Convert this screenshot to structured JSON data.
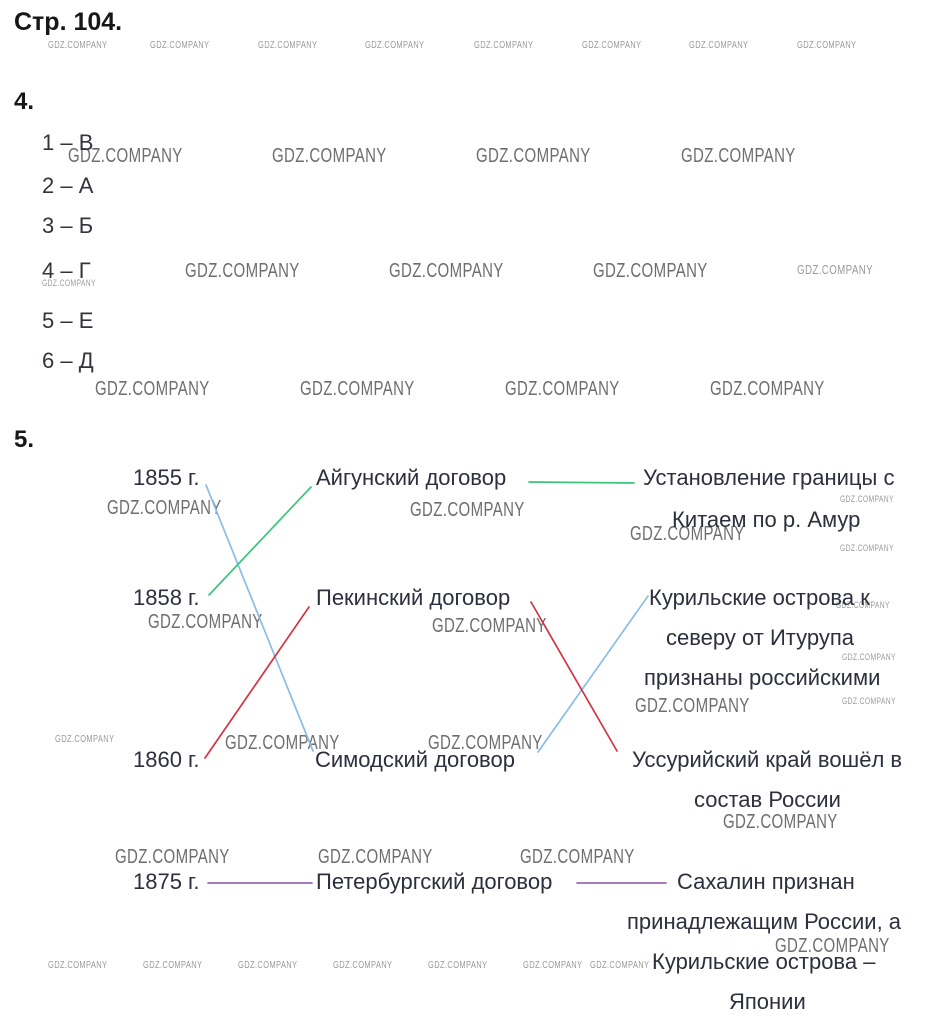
{
  "page": {
    "title": "Стр. 104."
  },
  "watermark": {
    "text": "GDZ.COMPANY"
  },
  "colors": {
    "text": "#2c2f3d",
    "line_green": "#3cc47c",
    "line_blue": "#8abde6",
    "line_red": "#d23440",
    "line_purple": "#9a6cb5"
  },
  "task4": {
    "number": "4.",
    "answers": [
      "1 – В",
      "2 – А",
      "3 – Б",
      "4 – Г",
      "5 – Е",
      "6 – Д"
    ]
  },
  "task5": {
    "number": "5.",
    "years": [
      "1855 г.",
      "1858 г.",
      "1860 г.",
      "1875 г."
    ],
    "treaties": [
      "Айгунский договор",
      "Пекинский договор",
      "Симодский договор",
      "Петербургский договор"
    ],
    "results": [
      {
        "lines": [
          "Установление границы с",
          "Китаем по р. Амур"
        ]
      },
      {
        "lines": [
          "Курильские острова к",
          "северу от Итурупа",
          "признаны российскими"
        ]
      },
      {
        "lines": [
          "Уссурийский край вошёл в",
          "состав России"
        ]
      },
      {
        "lines": [
          "Сахалин признан",
          "принадлежащим России, а",
          "Курильские острова –",
          "Японии"
        ]
      }
    ],
    "connections": [
      {
        "from": "1855 г.",
        "to": "Симодский договор",
        "color": "blue"
      },
      {
        "from": "1858 г.",
        "to": "Айгунский договор",
        "color": "green"
      },
      {
        "from": "1860 г.",
        "to": "Пекинский договор",
        "color": "red"
      },
      {
        "from": "1875 г.",
        "to": "Петербургский договор",
        "color": "purple"
      },
      {
        "from": "Айгунский договор",
        "to": "Установление границы с Китаем по р. Амур",
        "color": "green"
      },
      {
        "from": "Симодский договор",
        "to": "Курильские острова к северу от Итурупа признаны российскими",
        "color": "blue"
      },
      {
        "from": "Пекинский договор",
        "to": "Уссурийский край вошёл в состав России",
        "color": "red"
      },
      {
        "from": "Петербургский договор",
        "to": "Сахалин признан принадлежащим России, а Курильские острова – Японии",
        "color": "purple"
      }
    ]
  }
}
